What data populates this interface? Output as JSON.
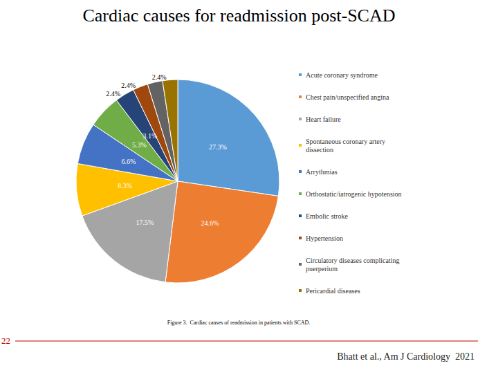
{
  "chart_data": {
    "type": "pie",
    "title": "Cardiac causes for readmission post-SCAD",
    "categories": [
      "Acute coronary syndrome",
      "Chest pain/unspecified angina",
      "Heart failure",
      "Spontaneous coronary artery dissection",
      "Arrythmias",
      "Orthostatic/iatrogenic hypotension",
      "Embolic stroke",
      "Hypertension",
      "Circulatory diseases complicating puerperium",
      "Pericardial diseases"
    ],
    "values": [
      27.3,
      24.6,
      17.5,
      8.3,
      6.6,
      5.3,
      3.1,
      2.4,
      2.4,
      2.4
    ],
    "value_labels": [
      "27.3%",
      "24.6%",
      "17.5%",
      "8.3%",
      "6.6%",
      "5.3%",
      "3.1%",
      "2.4%",
      "2.4%",
      "2.4%"
    ],
    "colors": [
      "#5b9bd5",
      "#ed7d31",
      "#a5a5a5",
      "#ffc000",
      "#4472c4",
      "#70ad47",
      "#264478",
      "#9e480e",
      "#636363",
      "#997300"
    ],
    "legend": "right",
    "data_labels": true,
    "annotations": [
      "Figure 3.  Cardiac causes of readmission in patients with SCAD.",
      "22",
      "Bhatt et al., Am J Cardiology  2021"
    ]
  }
}
